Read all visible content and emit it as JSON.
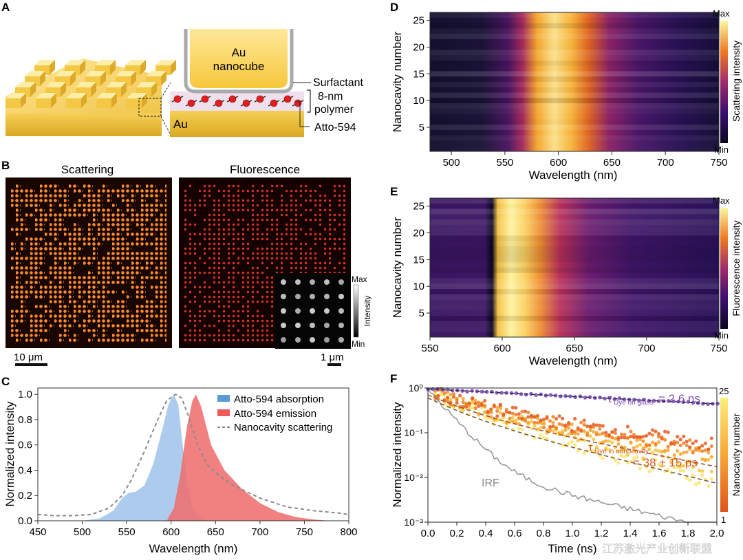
{
  "panels": {
    "a": {
      "letter": "A",
      "cube_label_1": "Au",
      "cube_label_2": "nanocube",
      "surfactant": "Surfactant",
      "polymer_1": "8-nm",
      "polymer_2": "polymer",
      "substrate": "Au",
      "dye": "Atto-594"
    },
    "b": {
      "letter": "B",
      "title_left": "Scattering",
      "title_right": "Fluorescence",
      "scale_left": "10 μm",
      "scale_right": "1 μm",
      "inset_max": "Max",
      "inset_min": "Min",
      "inset_label": "Intensity"
    },
    "c": {
      "letter": "C"
    },
    "d": {
      "letter": "D",
      "ylabel": "Nanocavity number",
      "xlabel": "Wavelength (nm)",
      "cbar_label": "Scattering intensity",
      "cbar_max": "Max",
      "cbar_min": "Min",
      "xticks": [
        "500",
        "550",
        "600",
        "650",
        "700",
        "750"
      ],
      "yticks": [
        "5",
        "10",
        "15",
        "20",
        "25"
      ]
    },
    "e": {
      "letter": "E",
      "ylabel": "Nanocavity number",
      "xlabel": "Wavelength (nm)",
      "cbar_label": "Fluorescence intensity",
      "cbar_max": "Max",
      "cbar_min": "Min",
      "xticks": [
        "550",
        "600",
        "650",
        "700",
        "750"
      ],
      "yticks": [
        "5",
        "10",
        "15",
        "20",
        "25"
      ]
    },
    "f": {
      "letter": "F",
      "ylabel": "Normalized intensity",
      "xlabel": "Time (ns)",
      "xticks": [
        "0.0",
        "0.2",
        "0.4",
        "0.6",
        "0.8",
        "1.0",
        "1.2",
        "1.4",
        "1.6",
        "1.8",
        "2.0"
      ],
      "yticks": [
        "10⁰",
        "10⁻¹",
        "10⁻²",
        "10⁻³"
      ],
      "tau_glass_sym": "τ",
      "tau_glass_sub": "Dye on glass",
      "tau_glass_val": "= 2.6 ns",
      "tau_cav_sym": "τ",
      "tau_cav_sub": "Dye in nanocavity",
      "tau_cav_val": "= 38 ± 15 ps",
      "irf": "IRF",
      "cbar_label": "Nanocavity number",
      "cbar_top": "25",
      "cbar_bottom": "1"
    }
  },
  "watermark": "江苏激光产业创新联盟",
  "colors": {
    "absorption": "#5b9bd5",
    "emission": "#ee5a5a",
    "scattering": "#888888",
    "glass": "#7b4fb5",
    "cavity_fit": "#a8543a"
  },
  "chart_data": {
    "type": "area",
    "title": "",
    "xlabel": "Wavelength (nm)",
    "ylabel": "Normalized intensity",
    "xlim": [
      450,
      800
    ],
    "ylim": [
      0,
      1.05
    ],
    "xticks": [
      "450",
      "500",
      "550",
      "600",
      "650",
      "700",
      "750",
      "800"
    ],
    "yticks": [
      "0.0",
      "0.2",
      "0.4",
      "0.6",
      "0.8",
      "1.0"
    ],
    "legend_position": "top-right",
    "series": [
      {
        "name": "Atto-594 absorption",
        "style": "fill",
        "x": [
          500,
          520,
          535,
          545,
          552,
          560,
          570,
          580,
          590,
          597,
          603,
          608,
          613,
          618,
          625,
          635,
          645
        ],
        "values": [
          0,
          0.02,
          0.08,
          0.18,
          0.22,
          0.23,
          0.28,
          0.45,
          0.72,
          0.92,
          1.0,
          0.92,
          0.6,
          0.3,
          0.08,
          0.01,
          0
        ]
      },
      {
        "name": "Atto-594 emission",
        "style": "fill",
        "x": [
          595,
          603,
          610,
          618,
          624,
          628,
          634,
          645,
          660,
          680,
          700,
          720,
          740,
          760,
          780
        ],
        "values": [
          0,
          0.1,
          0.35,
          0.75,
          0.95,
          1.0,
          0.9,
          0.6,
          0.4,
          0.25,
          0.14,
          0.07,
          0.03,
          0.01,
          0
        ]
      },
      {
        "name": "Nanocavity scattering",
        "style": "dashed",
        "x": [
          450,
          470,
          490,
          510,
          530,
          545,
          555,
          570,
          585,
          595,
          605,
          612,
          620,
          630,
          640,
          650,
          670,
          700,
          730,
          760,
          790,
          800
        ],
        "values": [
          0.05,
          0.04,
          0.04,
          0.05,
          0.1,
          0.2,
          0.32,
          0.55,
          0.8,
          0.95,
          1.0,
          0.97,
          0.82,
          0.6,
          0.45,
          0.38,
          0.28,
          0.18,
          0.11,
          0.08,
          0.06,
          0.05
        ]
      }
    ]
  }
}
